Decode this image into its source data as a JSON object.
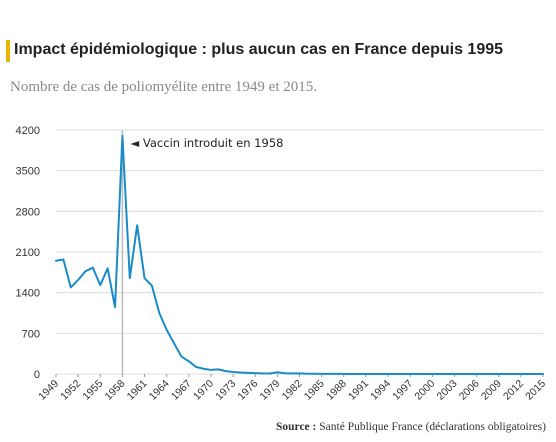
{
  "header": {
    "title": "Impact épidémiologique : plus aucun cas en France depuis 1995",
    "subtitle": "Nombre de cas de poliomyélite entre 1949 et 2015."
  },
  "source": {
    "label": "Source :",
    "text": "Santé Publique France (déclarations obligatoires)"
  },
  "colors": {
    "line": "#1a8bc8",
    "accent": "#e6b800",
    "grid": "#dddddd",
    "marker": "#bbbbbb"
  },
  "chart_data": {
    "type": "line",
    "title": "Impact épidémiologique : plus aucun cas en France depuis 1995",
    "subtitle": "Nombre de cas de poliomyélite entre 1949 et 2015.",
    "xlabel": "",
    "ylabel": "",
    "xlim": [
      1949,
      2015
    ],
    "ylim": [
      0,
      4200
    ],
    "yticks": [
      0,
      700,
      1400,
      2100,
      2800,
      3500,
      4200
    ],
    "xticks": [
      1949,
      1952,
      1955,
      1958,
      1961,
      1964,
      1967,
      1970,
      1973,
      1976,
      1979,
      1982,
      1985,
      1988,
      1991,
      1994,
      1997,
      2000,
      2003,
      2006,
      2009,
      2012,
      2015
    ],
    "grid": "horizontal",
    "annotation": {
      "x": 1958,
      "text": "◄ Vaccin introduit en 1958"
    },
    "series": [
      {
        "values": [
          [
            1949,
            1950
          ],
          [
            1950,
            1970
          ],
          [
            1951,
            1490
          ],
          [
            1952,
            1620
          ],
          [
            1953,
            1770
          ],
          [
            1954,
            1830
          ],
          [
            1955,
            1530
          ],
          [
            1956,
            1820
          ],
          [
            1957,
            1150
          ],
          [
            1958,
            4100
          ],
          [
            1959,
            1650
          ],
          [
            1960,
            2560
          ],
          [
            1961,
            1650
          ],
          [
            1962,
            1520
          ],
          [
            1963,
            1050
          ],
          [
            1964,
            760
          ],
          [
            1965,
            530
          ],
          [
            1966,
            300
          ],
          [
            1967,
            220
          ],
          [
            1968,
            120
          ],
          [
            1969,
            90
          ],
          [
            1970,
            70
          ],
          [
            1971,
            80
          ],
          [
            1972,
            50
          ],
          [
            1973,
            35
          ],
          [
            1974,
            25
          ],
          [
            1975,
            20
          ],
          [
            1976,
            15
          ],
          [
            1977,
            10
          ],
          [
            1978,
            8
          ],
          [
            1979,
            30
          ],
          [
            1980,
            12
          ],
          [
            1981,
            8
          ],
          [
            1982,
            10
          ],
          [
            1983,
            5
          ],
          [
            1984,
            4
          ],
          [
            1985,
            3
          ],
          [
            1986,
            3
          ],
          [
            1987,
            2
          ],
          [
            1988,
            2
          ],
          [
            1989,
            1
          ],
          [
            1990,
            1
          ],
          [
            1991,
            1
          ],
          [
            1992,
            1
          ],
          [
            1993,
            1
          ],
          [
            1994,
            1
          ],
          [
            1995,
            0
          ],
          [
            1996,
            0
          ],
          [
            1997,
            0
          ],
          [
            1998,
            0
          ],
          [
            1999,
            0
          ],
          [
            2000,
            0
          ],
          [
            2001,
            0
          ],
          [
            2002,
            0
          ],
          [
            2003,
            0
          ],
          [
            2004,
            0
          ],
          [
            2005,
            0
          ],
          [
            2006,
            0
          ],
          [
            2007,
            0
          ],
          [
            2008,
            0
          ],
          [
            2009,
            0
          ],
          [
            2010,
            0
          ],
          [
            2011,
            0
          ],
          [
            2012,
            0
          ],
          [
            2013,
            0
          ],
          [
            2014,
            0
          ],
          [
            2015,
            0
          ]
        ]
      }
    ]
  }
}
